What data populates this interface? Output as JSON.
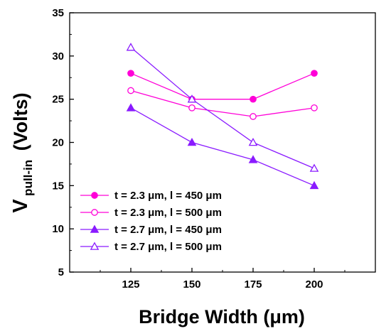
{
  "chart_data": {
    "type": "line",
    "title": "",
    "xlabel": "Bridge Width (μm)",
    "ylabel_main": "V",
    "ylabel_sub": "pull-in",
    "ylabel_unit": "(Volts)",
    "x": [
      125,
      150,
      175,
      200
    ],
    "xticks": [
      "125",
      "150",
      "175",
      "200"
    ],
    "xlim": [
      100,
      225
    ],
    "ylim": [
      5,
      35
    ],
    "yticks": [
      "5",
      "10",
      "15",
      "20",
      "25",
      "30",
      "35"
    ],
    "grid": false,
    "legend_position": "bottom-left",
    "series": [
      {
        "name": "t = 2.3 μm, l = 450 μm",
        "values": [
          28,
          25,
          25,
          28
        ],
        "color": "#ff00d8",
        "marker": "circle",
        "filled": true
      },
      {
        "name": "t = 2.3 μm, l = 500 μm",
        "values": [
          26,
          24,
          23,
          24
        ],
        "color": "#ff00d8",
        "marker": "circle",
        "filled": false
      },
      {
        "name": "t = 2.7 μm, l = 450 μm",
        "values": [
          24,
          20,
          18,
          15
        ],
        "color": "#8a1bff",
        "marker": "triangle",
        "filled": true
      },
      {
        "name": "t = 2.7 μm, l = 500 μm",
        "values": [
          31,
          25,
          20,
          17
        ],
        "color": "#8a1bff",
        "marker": "triangle",
        "filled": false
      }
    ]
  }
}
